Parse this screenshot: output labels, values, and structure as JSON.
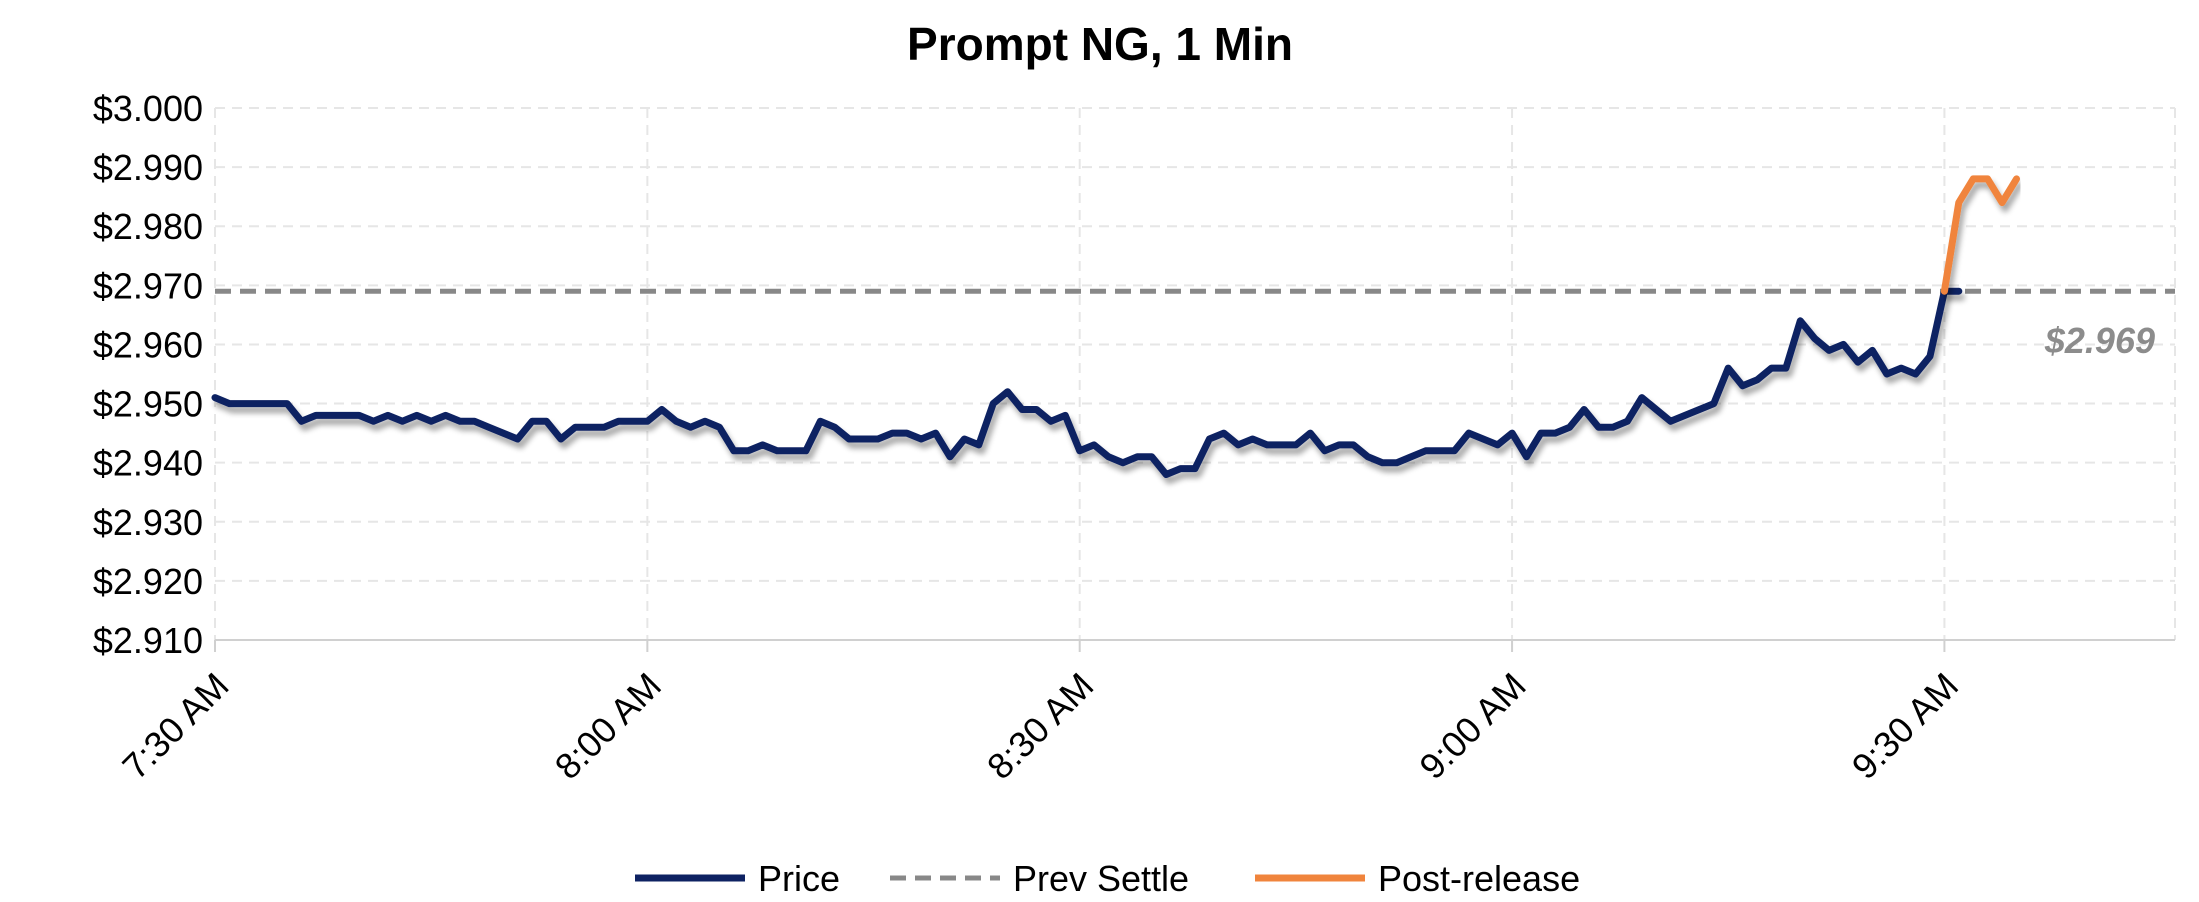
{
  "chart_data": {
    "type": "line",
    "title": "Prompt NG, 1 Min",
    "x_unit": "time",
    "x_ticks": [
      "7:30 AM",
      "8:00 AM",
      "8:30 AM",
      "9:00 AM",
      "9:30 AM"
    ],
    "x_tick_minutes": [
      0,
      30,
      60,
      90,
      120
    ],
    "xlim_minutes": [
      0,
      136
    ],
    "ylim": [
      2.91,
      3.0
    ],
    "y_ticks": [
      "$2.910",
      "$2.920",
      "$2.930",
      "$2.940",
      "$2.950",
      "$2.960",
      "$2.970",
      "$2.980",
      "$2.990",
      "$3.000"
    ],
    "y_tick_values": [
      2.91,
      2.92,
      2.93,
      2.94,
      2.95,
      2.96,
      2.97,
      2.98,
      2.99,
      3.0
    ],
    "grid": true,
    "legend_position": "bottom",
    "series": [
      {
        "name": "Price",
        "color": "#0e2262",
        "style": "solid",
        "x": [
          0,
          1,
          2,
          3,
          4,
          5,
          6,
          7,
          8,
          9,
          10,
          11,
          12,
          13,
          14,
          15,
          16,
          17,
          18,
          19,
          20,
          21,
          22,
          23,
          24,
          25,
          26,
          27,
          28,
          29,
          30,
          31,
          32,
          33,
          34,
          35,
          36,
          37,
          38,
          39,
          40,
          41,
          42,
          43,
          44,
          45,
          46,
          47,
          48,
          49,
          50,
          51,
          52,
          53,
          54,
          55,
          56,
          57,
          58,
          59,
          60,
          61,
          62,
          63,
          64,
          65,
          66,
          67,
          68,
          69,
          70,
          71,
          72,
          73,
          74,
          75,
          76,
          77,
          78,
          79,
          80,
          81,
          82,
          83,
          84,
          85,
          86,
          87,
          88,
          89,
          90,
          91,
          92,
          93,
          94,
          95,
          96,
          97,
          98,
          99,
          100,
          101,
          102,
          103,
          104,
          105,
          106,
          107,
          108,
          109,
          110,
          111,
          112,
          113,
          114,
          115,
          116,
          117,
          118,
          119,
          120,
          121
        ],
        "values": [
          2.951,
          2.95,
          2.95,
          2.95,
          2.95,
          2.95,
          2.947,
          2.948,
          2.948,
          2.948,
          2.948,
          2.947,
          2.948,
          2.947,
          2.948,
          2.947,
          2.948,
          2.947,
          2.947,
          2.946,
          2.945,
          2.944,
          2.947,
          2.947,
          2.944,
          2.946,
          2.946,
          2.946,
          2.947,
          2.947,
          2.947,
          2.949,
          2.947,
          2.946,
          2.947,
          2.946,
          2.942,
          2.942,
          2.943,
          2.942,
          2.942,
          2.942,
          2.947,
          2.946,
          2.944,
          2.944,
          2.944,
          2.945,
          2.945,
          2.944,
          2.945,
          2.941,
          2.944,
          2.943,
          2.95,
          2.952,
          2.949,
          2.949,
          2.947,
          2.948,
          2.942,
          2.943,
          2.941,
          2.94,
          2.941,
          2.941,
          2.938,
          2.939,
          2.939,
          2.944,
          2.945,
          2.943,
          2.944,
          2.943,
          2.943,
          2.943,
          2.945,
          2.942,
          2.943,
          2.943,
          2.941,
          2.94,
          2.94,
          2.941,
          2.942,
          2.942,
          2.942,
          2.945,
          2.944,
          2.943,
          2.945,
          2.941,
          2.945,
          2.945,
          2.946,
          2.949,
          2.946,
          2.946,
          2.947,
          2.951,
          2.949,
          2.947,
          2.948,
          2.949,
          2.95,
          2.956,
          2.953,
          2.954,
          2.956,
          2.956,
          2.964,
          2.961,
          2.959,
          2.96,
          2.957,
          2.959,
          2.955,
          2.956,
          2.955,
          2.958,
          2.969,
          2.969
        ]
      },
      {
        "name": "Prev Settle",
        "color": "#888888",
        "style": "dashed",
        "value": 2.969,
        "label": "$2.969"
      },
      {
        "name": "Post-release",
        "color": "#f0843c",
        "style": "solid",
        "x": [
          120,
          121,
          122,
          123,
          124,
          125
        ],
        "values": [
          2.969,
          2.984,
          2.988,
          2.988,
          2.984,
          2.988
        ]
      }
    ]
  }
}
